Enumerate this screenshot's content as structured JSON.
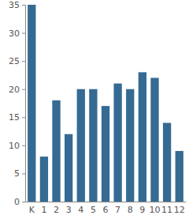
{
  "chart_data": {
    "type": "bar",
    "categories": [
      "K",
      "1",
      "2",
      "3",
      "4",
      "5",
      "6",
      "7",
      "8",
      "9",
      "10",
      "11",
      "12"
    ],
    "values": [
      35,
      8,
      18,
      12,
      20,
      20,
      17,
      21,
      20,
      23,
      22,
      14,
      9
    ],
    "color": "#356a92",
    "ylim": [
      0,
      35
    ],
    "yticks": [
      0,
      5,
      10,
      15,
      20,
      25,
      30,
      35
    ],
    "grid": false
  }
}
